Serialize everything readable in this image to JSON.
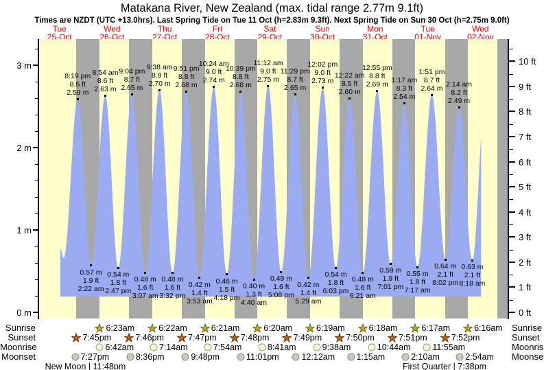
{
  "title": "Matakana River, New Zealand (max. tidal range 2.77m 9.1ft)",
  "subtitle": "Times are NZDT (UTC +13.0hrs). Last Spring Tide on Tue 11 Oct (h=2.83m 9.3ft). Next Spring Tide on Sun 30 Oct (h=2.75m 9.0ft)",
  "days": [
    {
      "weekday": "Tue",
      "date": "25-Oct"
    },
    {
      "weekday": "Wed",
      "date": "26-Oct"
    },
    {
      "weekday": "Thu",
      "date": "27-Oct"
    },
    {
      "weekday": "Fri",
      "date": "28-Oct"
    },
    {
      "weekday": "Sat",
      "date": "29-Oct"
    },
    {
      "weekday": "Sun",
      "date": "30-Oct"
    },
    {
      "weekday": "Mon",
      "date": "31-Oct"
    },
    {
      "weekday": "Tue",
      "date": "01-Nov"
    },
    {
      "weekday": "Wed",
      "date": "02-Nov"
    }
  ],
  "chart_data": {
    "type": "area",
    "ylabel_left": "m",
    "ylabel_right": "ft",
    "m_ticks": [
      "0 m",
      "1 m",
      "2 m",
      "3 m"
    ],
    "ft_ticks": [
      "0 ft",
      "1 ft",
      "2 ft",
      "3 ft",
      "4 ft",
      "5 ft",
      "6 ft",
      "7 ft",
      "8 ft",
      "9 ft",
      "10 ft"
    ],
    "high_tides": [
      {
        "day": 0,
        "time": "8:19 pm",
        "ft": "8.5 ft",
        "m": "2.59 m"
      },
      {
        "day": 1,
        "time": "8:54 am",
        "ft": "8.6 ft",
        "m": "2.63 m"
      },
      {
        "day": 1,
        "time": "9:04 pm",
        "ft": "8.7 ft",
        "m": "2.65 m"
      },
      {
        "day": 2,
        "time": "9:38 am",
        "ft": "8.9 ft",
        "m": "2.70 m"
      },
      {
        "day": 2,
        "time": "9:51 pm",
        "ft": "8.8 ft",
        "m": "2.68 m"
      },
      {
        "day": 3,
        "time": "10:24 am",
        "ft": "9.0 ft",
        "m": "2.74 m"
      },
      {
        "day": 3,
        "time": "10:39 pm",
        "ft": "8.8 ft",
        "m": "2.68 m"
      },
      {
        "day": 4,
        "time": "11:12 am",
        "ft": "9.0 ft",
        "m": "2.75 m"
      },
      {
        "day": 4,
        "time": "11:29 pm",
        "ft": "8.7 ft",
        "m": "2.65 m"
      },
      {
        "day": 5,
        "time": "12:02 pm",
        "ft": "9.0 ft",
        "m": "2.73 m"
      },
      {
        "day": 6,
        "time": "12:22 am",
        "ft": "8.5 ft",
        "m": "2.60 m"
      },
      {
        "day": 6,
        "time": "12:55 pm",
        "ft": "8.8 ft",
        "m": "2.69 m"
      },
      {
        "day": 7,
        "time": "1:17 am",
        "ft": "8.3 ft",
        "m": "2.54 m"
      },
      {
        "day": 7,
        "time": "1:51 pm",
        "ft": "8.7 ft",
        "m": "2.64 m"
      },
      {
        "day": 8,
        "time": "2:14 am",
        "ft": "8.2 ft",
        "m": "2.49 m"
      }
    ],
    "low_tides": [
      {
        "day": 1,
        "time": "2:22 am",
        "ft": "1.9 ft",
        "m": "0.57 m"
      },
      {
        "day": 1,
        "time": "2:47 pm",
        "ft": "1.8 ft",
        "m": "0.54 m"
      },
      {
        "day": 2,
        "time": "3:07 am",
        "ft": "1.6 ft",
        "m": "0.48 m"
      },
      {
        "day": 2,
        "time": "3:32 pm",
        "ft": "1.6 ft",
        "m": "0.48 m"
      },
      {
        "day": 3,
        "time": "3:53 am",
        "ft": "1.4 ft",
        "m": "0.42 m"
      },
      {
        "day": 3,
        "time": "4:18 pm",
        "ft": "1.5 ft",
        "m": "0.46 m"
      },
      {
        "day": 4,
        "time": "4:40 am",
        "ft": "1.3 ft",
        "m": "0.40 m"
      },
      {
        "day": 4,
        "time": "5:08 pm",
        "ft": "1.6 ft",
        "m": "0.49 m"
      },
      {
        "day": 5,
        "time": "5:29 am",
        "ft": "1.4 ft",
        "m": "0.42 m"
      },
      {
        "day": 5,
        "time": "6:03 pm",
        "ft": "1.8 ft",
        "m": "0.54 m"
      },
      {
        "day": 6,
        "time": "6:21 am",
        "ft": "1.6 ft",
        "m": "0.48 m"
      },
      {
        "day": 6,
        "time": "7:01 pm",
        "ft": "1.9 ft",
        "m": "0.59 m"
      },
      {
        "day": 7,
        "time": "7:17 am",
        "ft": "1.8 ft",
        "m": "0.55 m"
      },
      {
        "day": 7,
        "time": "8:02 pm",
        "ft": "2.1 ft",
        "m": "0.64 m"
      },
      {
        "day": 8,
        "time": "8:18 am",
        "ft": "2.1 ft",
        "m": "0.63 m"
      }
    ],
    "curve_edge": {
      "start": {
        "day": 0,
        "time": "12:25 pm",
        "m": "0.77 m"
      },
      "pre_low": {
        "day": 0,
        "time": "1:55 pm",
        "m": "0.66 m"
      },
      "end_high": {
        "day": 8,
        "time": "1:50 pm",
        "m": "2.45 m"
      },
      "clip_end": {
        "day": 8,
        "time": "12:18 pm"
      }
    },
    "colors": {
      "day_band": "#ffffcc",
      "night_band": "#a8a8a8",
      "tide_fill": "#9aabf2",
      "day_label_red": "#ee0000"
    }
  },
  "astro": {
    "rows": [
      {
        "label": "Sunrise",
        "icon": "sunrise-star",
        "fill": "#b8ab2c",
        "stroke": "#6f6a12",
        "events": [
          {
            "day": 1,
            "time": "6:23am"
          },
          {
            "day": 2,
            "time": "6:22am"
          },
          {
            "day": 3,
            "time": "6:21am"
          },
          {
            "day": 4,
            "time": "6:20am"
          },
          {
            "day": 5,
            "time": "6:19am"
          },
          {
            "day": 6,
            "time": "6:18am"
          },
          {
            "day": 7,
            "time": "6:17am"
          },
          {
            "day": 8,
            "time": "6:16am"
          }
        ]
      },
      {
        "label": "Sunset",
        "icon": "sunset-star",
        "fill": "#b5641f",
        "stroke": "#5e3007",
        "events": [
          {
            "day": 0,
            "time": "7:45pm"
          },
          {
            "day": 1,
            "time": "7:46pm"
          },
          {
            "day": 2,
            "time": "7:47pm"
          },
          {
            "day": 3,
            "time": "7:48pm"
          },
          {
            "day": 4,
            "time": "7:49pm"
          },
          {
            "day": 5,
            "time": "7:50pm"
          },
          {
            "day": 6,
            "time": "7:51pm"
          },
          {
            "day": 7,
            "time": "7:52pm"
          }
        ]
      },
      {
        "label": "Moonrise",
        "icon": "moonrise-circle",
        "fill": "#ffffd6",
        "stroke": "#9a9a7a",
        "events": [
          {
            "day": 1,
            "time": "6:42am"
          },
          {
            "day": 2,
            "time": "7:14am"
          },
          {
            "day": 3,
            "time": "7:54am"
          },
          {
            "day": 4,
            "time": "8:41am"
          },
          {
            "day": 5,
            "time": "9:38am"
          },
          {
            "day": 6,
            "time": "10:44am"
          },
          {
            "day": 7,
            "time": "11:55am"
          }
        ]
      },
      {
        "label": "Moonset",
        "icon": "moonset-circle",
        "fill": "#c9c9bd",
        "stroke": "#8f8f83",
        "events": [
          {
            "day": 0,
            "time": "7:27pm"
          },
          {
            "day": 1,
            "time": "8:36pm"
          },
          {
            "day": 2,
            "time": "9:48pm"
          },
          {
            "day": 3,
            "time": "11:01pm"
          },
          {
            "day": 5,
            "time": "12:12am"
          },
          {
            "day": 6,
            "time": "1:15am"
          },
          {
            "day": 7,
            "time": "2:10am"
          },
          {
            "day": 8,
            "time": "2:54am"
          }
        ]
      }
    ],
    "phases": [
      {
        "text": "New Moon | 11:48pm",
        "day": 0,
        "time": "11:48pm"
      },
      {
        "text": "First Quarter | 7:38pm",
        "day": 7,
        "time": "7:38pm"
      }
    ]
  }
}
